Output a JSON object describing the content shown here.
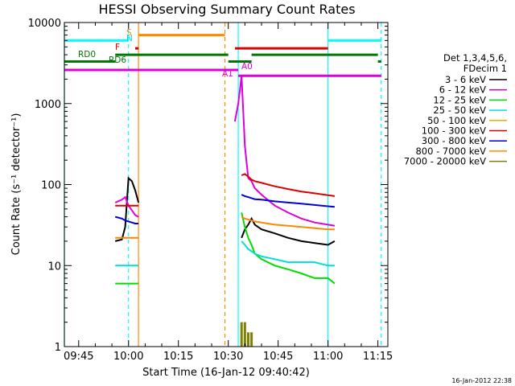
{
  "chart_data": {
    "type": "line",
    "title": "HESSI Observing Summary Count Rates",
    "xlabel": "Start Time (16-Jan-12 09:40:42)",
    "ylabel": "Count Rate (s⁻¹ detector⁻¹)",
    "y_scale": "log",
    "ylim": [
      1,
      10000
    ],
    "xlim": [
      "09:40:42",
      "11:18:00"
    ],
    "x_ticks": [
      "09:45",
      "10:00",
      "10:15",
      "10:30",
      "10:45",
      "11:00",
      "11:15"
    ],
    "y_ticks": [
      "1",
      "10",
      "100",
      "1000",
      "10000"
    ],
    "grid": false,
    "legend_position": "right",
    "legend_header": [
      "Det 1,3,4,5,6,",
      "FDecim 1"
    ],
    "series": [
      {
        "name": "3 - 6 keV",
        "color": "#000000",
        "x": [
          "09:56",
          "09:58",
          "09:59",
          "10:00",
          "10:01",
          "10:02",
          "10:03",
          "10:34",
          "10:35",
          "10:36",
          "10:37",
          "10:38",
          "10:40",
          "10:44",
          "10:48",
          "10:52",
          "10:56",
          "11:00",
          "11:02"
        ],
        "y": [
          20,
          21,
          30,
          120,
          110,
          85,
          60,
          22,
          28,
          32,
          38,
          32,
          28,
          25,
          22,
          20,
          19,
          18,
          20
        ]
      },
      {
        "name": "6 - 12 keV",
        "color": "#dd00dd",
        "x": [
          "09:56",
          "09:58",
          "09:59",
          "10:00",
          "10:01",
          "10:02",
          "10:03",
          "10:32",
          "10:33",
          "10:34",
          "10:35",
          "10:36",
          "10:37",
          "10:38",
          "10:40",
          "10:44",
          "10:48",
          "10:52",
          "10:56",
          "11:00",
          "11:02"
        ],
        "y": [
          60,
          65,
          70,
          55,
          48,
          42,
          40,
          600,
          1000,
          2200,
          300,
          120,
          110,
          90,
          75,
          55,
          45,
          38,
          34,
          32,
          31
        ]
      },
      {
        "name": "12 - 25 keV",
        "color": "#00dd00",
        "x": [
          "09:56",
          "09:58",
          "09:59",
          "10:00",
          "10:01",
          "10:02",
          "10:03",
          "10:34",
          "10:35",
          "10:36",
          "10:37",
          "10:38",
          "10:40",
          "10:44",
          "10:48",
          "10:52",
          "10:56",
          "11:00",
          "11:02"
        ],
        "y": [
          6,
          6,
          6,
          6,
          6,
          6,
          6,
          45,
          30,
          22,
          18,
          14,
          12,
          10,
          9,
          8,
          7,
          7,
          6
        ]
      },
      {
        "name": "25 - 50 keV",
        "color": "#00dddd",
        "x": [
          "09:56",
          "09:58",
          "09:59",
          "10:00",
          "10:01",
          "10:02",
          "10:03",
          "10:34",
          "10:35",
          "10:36",
          "10:37",
          "10:38",
          "10:40",
          "10:44",
          "10:48",
          "10:52",
          "10:56",
          "11:00",
          "11:02"
        ],
        "y": [
          10,
          10,
          10,
          10,
          10,
          10,
          10,
          20,
          18,
          16,
          15,
          14,
          13,
          12,
          11,
          11,
          11,
          10,
          10
        ]
      },
      {
        "name": "50 - 100 keV",
        "color": "#eeaa00",
        "x": [],
        "y": []
      },
      {
        "name": "100 - 300 keV",
        "color": "#dd0000",
        "x": [
          "09:56",
          "09:58",
          "09:59",
          "10:00",
          "10:01",
          "10:02",
          "10:03",
          "10:34",
          "10:35",
          "10:36",
          "10:37",
          "10:38",
          "10:40",
          "10:44",
          "10:48",
          "10:52",
          "10:56",
          "11:00",
          "11:02"
        ],
        "y": [
          55,
          55,
          55,
          55,
          55,
          55,
          55,
          130,
          135,
          125,
          115,
          110,
          105,
          95,
          88,
          82,
          78,
          74,
          72
        ]
      },
      {
        "name": "300 - 800 keV",
        "color": "#0000dd",
        "x": [
          "09:56",
          "09:58",
          "09:59",
          "10:00",
          "10:01",
          "10:02",
          "10:03",
          "10:34",
          "10:35",
          "10:36",
          "10:37",
          "10:38",
          "10:40",
          "10:44",
          "10:48",
          "10:52",
          "10:56",
          "11:00",
          "11:02"
        ],
        "y": [
          40,
          38,
          36,
          35,
          34,
          33,
          33,
          75,
          72,
          70,
          68,
          66,
          65,
          62,
          60,
          58,
          56,
          54,
          53
        ]
      },
      {
        "name": "800 - 7000 keV",
        "color": "#ff8800",
        "x": [
          "09:56",
          "09:58",
          "09:59",
          "10:00",
          "10:01",
          "10:02",
          "10:03",
          "10:34",
          "10:35",
          "10:36",
          "10:37",
          "10:38",
          "10:40",
          "10:44",
          "10:48",
          "10:52",
          "10:56",
          "11:00",
          "11:02"
        ],
        "y": [
          22,
          22,
          22,
          22,
          22,
          22,
          22,
          40,
          38,
          37,
          36,
          35,
          34,
          32,
          31,
          30,
          29,
          28,
          28
        ]
      },
      {
        "name": "7000 - 20000 keV",
        "color": "#808000",
        "x": [
          "10:34",
          "10:35",
          "10:36",
          "10:37"
        ],
        "y": [
          2,
          2,
          1.5,
          1.5
        ]
      }
    ],
    "annotations": [
      {
        "text": "RD0",
        "color": "#007700"
      },
      {
        "text": "RD6",
        "color": "#007700"
      },
      {
        "text": "F",
        "color": "#dd0000"
      },
      {
        "text": "S",
        "color": "#ff8800"
      },
      {
        "text": "N",
        "color": "#00dddd"
      },
      {
        "text": "A1",
        "color": "#dd00dd"
      },
      {
        "text": "A0",
        "color": "#dd00dd"
      }
    ],
    "status_bars": [
      {
        "color": "#00ffff",
        "value": 6000,
        "x_ranges": [
          [
            "09:40:42",
            "10:00"
          ],
          [
            "11:00",
            "11:16"
          ]
        ]
      },
      {
        "color": "#ff8800",
        "value": 7000,
        "x_ranges": [
          [
            "10:03",
            "10:29"
          ]
        ]
      },
      {
        "color": "#dd0000",
        "value": 4800,
        "x_ranges": [
          [
            "10:02",
            "10:03"
          ],
          [
            "10:32",
            "11:00"
          ]
        ]
      },
      {
        "color": "#007700",
        "value": 4000,
        "x_ranges": [
          [
            "09:56",
            "10:30"
          ],
          [
            "10:37",
            "11:15"
          ]
        ]
      },
      {
        "color": "#007700",
        "value": 3300,
        "x_ranges": [
          [
            "09:40:42",
            "09:56"
          ],
          [
            "10:30",
            "10:37"
          ],
          [
            "11:15",
            "11:16"
          ]
        ]
      },
      {
        "color": "#dd00dd",
        "value": 2600,
        "x_ranges": [
          [
            "09:40:42",
            "10:33"
          ]
        ]
      },
      {
        "color": "#dd00dd",
        "value": 2200,
        "x_ranges": [
          [
            "10:33",
            "11:16"
          ]
        ]
      }
    ],
    "vertical_markers": [
      {
        "color": "#00ffff",
        "style": "solid",
        "x": "09:40:42"
      },
      {
        "color": "#00ffff",
        "style": "dashed",
        "x": "10:00"
      },
      {
        "color": "#ff8800",
        "style": "solid",
        "x": "10:03"
      },
      {
        "color": "#ff8800",
        "style": "dashed",
        "x": "10:29"
      },
      {
        "color": "#00ffff",
        "style": "solid",
        "x": "10:33"
      },
      {
        "color": "#00ffff",
        "style": "solid",
        "x": "11:00"
      },
      {
        "color": "#00ffff",
        "style": "dashed",
        "x": "11:16"
      }
    ]
  },
  "timestamp": "16-Jan-2012 22:38"
}
